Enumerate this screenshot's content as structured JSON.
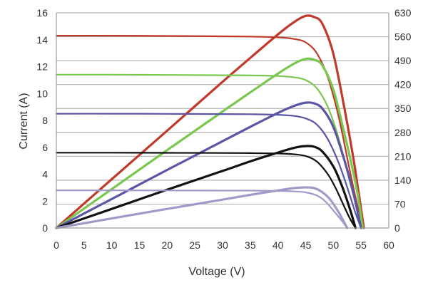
{
  "chart_data": {
    "type": "line",
    "xlabel": "Voltage (V)",
    "ylabel": "Current (A)",
    "ylabel_right": "",
    "xlim": [
      0,
      60
    ],
    "ylim": [
      0,
      16
    ],
    "ylim_right": [
      0,
      630
    ],
    "x_ticks": [
      "0",
      "5",
      "10",
      "15",
      "20",
      "25",
      "30",
      "35",
      "40",
      "45",
      "50",
      "55",
      "60"
    ],
    "y_ticks": [
      "0",
      "2",
      "4",
      "6",
      "8",
      "10",
      "12",
      "14",
      "16"
    ],
    "y_ticks_right": [
      "0",
      "70",
      "140",
      "210",
      "280",
      "350",
      "420",
      "490",
      "560",
      "630"
    ],
    "grid": "horizontal",
    "legend": "none",
    "series": [
      {
        "kind": "current",
        "axis": "left",
        "color": "#c0392b",
        "x": [
          0,
          10,
          20,
          30,
          35,
          40,
          43,
          45,
          47,
          49,
          51,
          53,
          54.5,
          55.5
        ],
        "y": [
          14.3,
          14.3,
          14.28,
          14.25,
          14.23,
          14.18,
          14.05,
          13.8,
          13.0,
          11.2,
          8.2,
          4.2,
          1.4,
          0
        ]
      },
      {
        "kind": "power",
        "axis": "right",
        "color": "#c0392b",
        "x": [
          0,
          10,
          20,
          30,
          35,
          40,
          43,
          45,
          46.5,
          48,
          50,
          52,
          53.5,
          54.5,
          55.5
        ],
        "y": [
          0,
          143,
          285,
          428,
          498,
          567,
          604,
          621,
          618,
          598,
          510,
          350,
          215,
          110,
          0
        ]
      },
      {
        "kind": "current",
        "axis": "left",
        "color": "#7ac74f",
        "x": [
          0,
          10,
          20,
          30,
          35,
          40,
          43,
          45,
          47,
          49,
          51,
          53,
          54.5,
          55.3
        ],
        "y": [
          11.4,
          11.4,
          11.38,
          11.36,
          11.35,
          11.3,
          11.2,
          11.0,
          10.4,
          9.0,
          6.6,
          3.4,
          1.1,
          0
        ]
      },
      {
        "kind": "power",
        "axis": "right",
        "color": "#7ac74f",
        "x": [
          0,
          10,
          20,
          30,
          35,
          40,
          43,
          45,
          46.5,
          48,
          50,
          52,
          53.5,
          54.5,
          55.3
        ],
        "y": [
          0,
          114,
          228,
          341,
          397,
          452,
          482,
          495,
          493,
          476,
          405,
          276,
          170,
          88,
          0
        ]
      },
      {
        "kind": "current",
        "axis": "left",
        "color": "#5a55a5",
        "x": [
          0,
          10,
          20,
          30,
          35,
          40,
          43,
          45,
          47,
          49,
          51,
          53,
          54,
          55
        ],
        "y": [
          8.5,
          8.5,
          8.49,
          8.47,
          8.46,
          8.42,
          8.33,
          8.15,
          7.7,
          6.6,
          4.8,
          2.4,
          1.1,
          0
        ]
      },
      {
        "kind": "power",
        "axis": "right",
        "color": "#5a55a5",
        "x": [
          0,
          10,
          20,
          30,
          35,
          40,
          43,
          45,
          46.5,
          48,
          50,
          52,
          53.5,
          55
        ],
        "y": [
          0,
          85,
          170,
          254,
          296,
          337,
          358,
          367,
          365,
          350,
          296,
          198,
          110,
          0
        ]
      },
      {
        "kind": "current",
        "axis": "left",
        "color": "#111111",
        "x": [
          0,
          10,
          20,
          30,
          35,
          40,
          43,
          45,
          47,
          49,
          50.5,
          52,
          53,
          54
        ],
        "y": [
          5.6,
          5.6,
          5.59,
          5.58,
          5.57,
          5.54,
          5.48,
          5.35,
          4.95,
          4.0,
          2.9,
          1.55,
          0.7,
          0
        ]
      },
      {
        "kind": "power",
        "axis": "right",
        "color": "#111111",
        "x": [
          0,
          10,
          20,
          30,
          35,
          40,
          43,
          45,
          46.5,
          48,
          50,
          51.5,
          53,
          54
        ],
        "y": [
          0,
          56,
          112,
          167,
          195,
          221,
          235,
          240,
          238,
          224,
          180,
          125,
          55,
          0
        ]
      },
      {
        "kind": "current",
        "axis": "left",
        "color": "#a09ac8",
        "x": [
          0,
          10,
          20,
          30,
          35,
          40,
          43,
          45,
          47,
          48.5,
          50,
          51.5,
          52.5
        ],
        "y": [
          2.8,
          2.8,
          2.79,
          2.78,
          2.78,
          2.76,
          2.72,
          2.65,
          2.42,
          2.0,
          1.3,
          0.55,
          0
        ]
      },
      {
        "kind": "power",
        "axis": "right",
        "color": "#a09ac8",
        "x": [
          0,
          10,
          20,
          30,
          35,
          40,
          43,
          45,
          46.5,
          48,
          49.5,
          51,
          52.5
        ],
        "y": [
          0,
          28,
          56,
          83,
          97,
          110,
          117,
          119,
          117,
          105,
          82,
          45,
          0
        ]
      }
    ]
  }
}
